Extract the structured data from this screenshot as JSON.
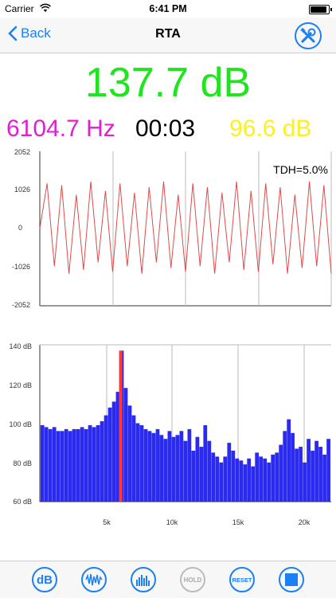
{
  "status_bar": {
    "carrier": "Carrier",
    "time": "6:41 PM"
  },
  "nav": {
    "back_label": "Back",
    "title": "RTA"
  },
  "readouts": {
    "level": "137.7 dB",
    "frequency": "6104.7 Hz",
    "elapsed": "00:03",
    "peak": "96.6 dB"
  },
  "waveform": {
    "tdh_label": "TDH=5.0%",
    "y_ticks": [
      "2052",
      "1026",
      "0",
      "-1026",
      "-2052"
    ],
    "color": "#e04a4a"
  },
  "spectrum": {
    "y_ticks": [
      "140 dB",
      "120 dB",
      "100 dB",
      "80 dB",
      "60 dB"
    ],
    "x_ticks": [
      "5k",
      "10k",
      "15k",
      "20k"
    ],
    "bar_color": "#2a2af0",
    "peak_color": "#ff3a3a"
  },
  "toolbar": {
    "db_label": "dB",
    "hold_label": "HOLD",
    "reset_label": "RESET",
    "accent": "#1b7ff5"
  },
  "chart_data": [
    {
      "type": "line",
      "x": [
        0,
        1,
        2,
        3,
        4,
        5,
        6,
        7,
        8,
        9,
        10,
        11,
        12,
        13,
        14,
        15,
        16,
        17,
        18,
        19,
        20,
        21,
        22,
        23,
        24,
        25,
        26,
        27,
        28,
        29,
        30,
        31,
        32,
        33,
        34,
        35,
        36,
        37,
        38,
        39,
        40
      ],
      "y": [
        0,
        1200,
        -1000,
        1150,
        -1200,
        900,
        -1100,
        1250,
        -900,
        1000,
        -1150,
        1200,
        -1000,
        950,
        -1200,
        1100,
        -900,
        1250,
        -1050,
        900,
        -1150,
        1200,
        -1000,
        1100,
        -1200,
        950,
        -900,
        1250,
        -1100,
        1000,
        -1150,
        1200,
        -950,
        1100,
        -1200,
        900,
        -1050,
        1250,
        -1000,
        1150,
        -1200
      ],
      "ylim": [
        -2052,
        2052
      ],
      "annotation": "TDH=5.0%"
    },
    {
      "type": "bar",
      "x": [
        0.2,
        0.5,
        0.8,
        1.1,
        1.4,
        1.7,
        2.0,
        2.3,
        2.6,
        2.9,
        3.2,
        3.5,
        3.8,
        4.1,
        4.4,
        4.7,
        5.0,
        5.3,
        5.6,
        5.9,
        6.2,
        6.5,
        6.8,
        7.1,
        7.4,
        7.7,
        8.0,
        8.3,
        8.6,
        8.9,
        9.2,
        9.5,
        9.8,
        10.1,
        10.4,
        10.7,
        11.0,
        11.3,
        11.6,
        11.9,
        12.2,
        12.5,
        12.8,
        13.1,
        13.4,
        13.7,
        14.0,
        14.3,
        14.6,
        14.9,
        15.2,
        15.5,
        15.8,
        16.1,
        16.4,
        16.7,
        17.0,
        17.3,
        17.6,
        17.9,
        18.2,
        18.5,
        18.8,
        19.1,
        19.4,
        19.7,
        20.0,
        20.3,
        20.6,
        20.9,
        21.2,
        21.5,
        21.8
      ],
      "values": [
        99,
        98,
        97,
        98,
        96,
        96,
        97,
        96,
        97,
        97,
        98,
        97,
        99,
        98,
        99,
        101,
        104,
        108,
        111,
        116,
        137,
        118,
        109,
        104,
        100,
        99,
        97,
        96,
        95,
        97,
        94,
        92,
        96,
        93,
        94,
        96,
        91,
        97,
        86,
        93,
        88,
        99,
        91,
        85,
        83,
        80,
        83,
        90,
        86,
        82,
        81,
        79,
        82,
        78,
        85,
        83,
        82,
        80,
        84,
        85,
        89,
        96,
        102,
        95,
        87,
        88,
        80,
        92,
        86,
        91,
        88,
        84,
        92
      ],
      "peak_x_khz": 6.1,
      "xlabel": "",
      "ylabel": "",
      "ylim": [
        60,
        140
      ],
      "xlim": [
        0,
        22
      ]
    }
  ]
}
